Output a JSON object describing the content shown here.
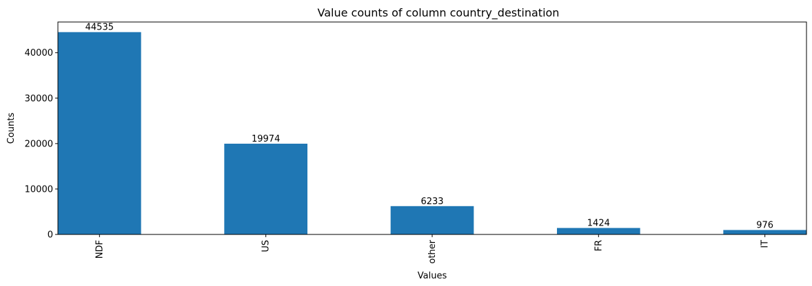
{
  "chart_data": {
    "type": "bar",
    "title": "Value counts of column country_destination",
    "xlabel": "Values",
    "ylabel": "Counts",
    "categories": [
      "NDF",
      "US",
      "other",
      "FR",
      "IT"
    ],
    "values": [
      44535,
      19974,
      6233,
      1424,
      976
    ],
    "data_labels": [
      "44535",
      "19974",
      "6233",
      "1424",
      "976"
    ],
    "ylim": [
      0,
      46762
    ],
    "yticks": [
      0,
      10000,
      20000,
      30000,
      40000
    ],
    "ytick_labels": [
      "0",
      "10000",
      "20000",
      "30000",
      "40000"
    ],
    "bar_color": "#1f77b4",
    "grid": false,
    "legend": "none"
  }
}
